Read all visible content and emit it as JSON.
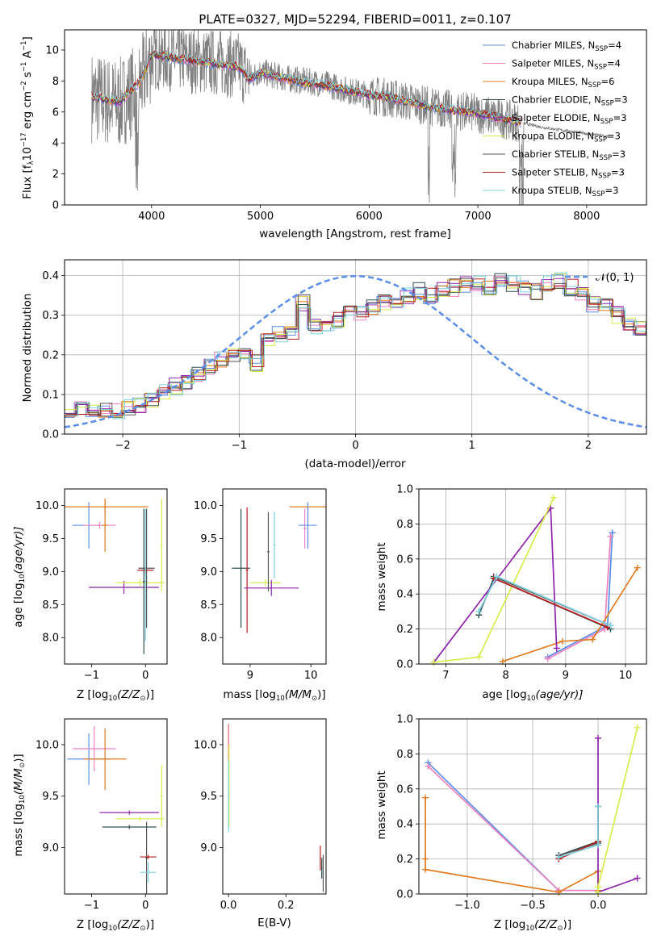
{
  "title": "PLATE=0327, MJD=52294, FIBERID=0011, z=0.107",
  "models": [
    {
      "name": "Chabrier MILES",
      "nssp": "4",
      "color": "#5b8ee6"
    },
    {
      "name": "Salpeter MILES",
      "nssp": "4",
      "color": "#ee82c0"
    },
    {
      "name": "Kroupa MILES",
      "nssp": "6",
      "color": "#e07b20"
    },
    {
      "name": "Chabrier ELODIE",
      "nssp": "3",
      "color": "#2f4f4f"
    },
    {
      "name": "Salpeter ELODIE",
      "nssp": "3",
      "color": "#8e24aa"
    },
    {
      "name": "Kroupa ELODIE",
      "nssp": "3",
      "color": "#d8ec4a"
    },
    {
      "name": "Chabrier STELIB",
      "nssp": "3",
      "color": "#555555"
    },
    {
      "name": "Salpeter STELIB",
      "nssp": "3",
      "color": "#b71c1c"
    },
    {
      "name": "Kroupa STELIB",
      "nssp": "3",
      "color": "#7fd0dc"
    }
  ],
  "legend_nssp_prefix": "N",
  "legend_nssp_sub": "SSP",
  "chart_data": [
    {
      "id": "spectrum",
      "type": "line",
      "xlabel": "wavelength [Angstrom, rest frame]",
      "ylabel_main": "Flux [f",
      "ylabel_sub": "λ",
      "ylabel_rest": "10",
      "ylabel_exp": "−17",
      "ylabel_units": " erg cm",
      "ylabel_units_exp": "−2",
      "ylabel_units2": " s",
      "ylabel_units2_exp": "−1",
      "ylabel_units3": " A",
      "ylabel_units3_exp": "−1",
      "ylabel_close": "]",
      "xlim": [
        3200,
        8550
      ],
      "ylim": [
        0,
        11.3
      ],
      "xticks": [
        "4000",
        "5000",
        "6000",
        "7000",
        "8000"
      ],
      "yticks": [
        "0",
        "2",
        "4",
        "6",
        "8",
        "10"
      ],
      "data_x": [
        3450,
        3700,
        3900,
        4000,
        4200,
        4400,
        4600,
        4800,
        4900,
        5000,
        5200,
        5400,
        5600,
        5800,
        6000,
        6200,
        6400,
        6600,
        6800,
        7000,
        7200,
        7400,
        7600,
        7800,
        8000,
        8200
      ],
      "data_y": [
        7.0,
        6.5,
        7.8,
        9.6,
        9.5,
        9.3,
        9.2,
        9.0,
        8.2,
        8.6,
        8.2,
        8.0,
        7.8,
        7.4,
        7.1,
        6.9,
        6.6,
        6.3,
        6.1,
        5.9,
        5.6,
        5.3,
        5.0,
        4.8,
        4.6,
        4.4
      ],
      "model_x": [
        3450,
        3700,
        3900,
        4000,
        4200,
        4400,
        4600,
        4800,
        4900,
        5000,
        5200,
        5400,
        5600,
        5800,
        6000,
        6200,
        6400,
        6600,
        6800,
        7000,
        7200,
        7400
      ],
      "model_y": [
        7.0,
        6.6,
        8.0,
        9.7,
        9.5,
        9.3,
        9.1,
        8.9,
        8.1,
        8.5,
        8.2,
        7.9,
        7.7,
        7.4,
        7.1,
        6.9,
        6.6,
        6.3,
        6.1,
        5.9,
        5.6,
        5.3
      ]
    },
    {
      "id": "residuals",
      "type": "step",
      "xlabel": "(data-model)/error",
      "ylabel": "Normed distribution",
      "xlim": [
        -2.5,
        2.5
      ],
      "ylim": [
        0,
        0.44
      ],
      "xticks": [
        "−2",
        "−1",
        "0",
        "1",
        "2"
      ],
      "yticks": [
        "0.0",
        "0.1",
        "0.2",
        "0.3",
        "0.4"
      ],
      "legend": "𝒩(0, 1)",
      "bin_width": 0.1,
      "bin_start": -2.5,
      "base_values": [
        0.045,
        0.06,
        0.055,
        0.06,
        0.06,
        0.065,
        0.07,
        0.09,
        0.11,
        0.12,
        0.13,
        0.15,
        0.17,
        0.19,
        0.2,
        0.2,
        0.18,
        0.24,
        0.25,
        0.26,
        0.33,
        0.27,
        0.28,
        0.29,
        0.31,
        0.3,
        0.32,
        0.33,
        0.34,
        0.35,
        0.36,
        0.35,
        0.36,
        0.37,
        0.38,
        0.38,
        0.37,
        0.39,
        0.38,
        0.37,
        0.36,
        0.38,
        0.39,
        0.37,
        0.35,
        0.33,
        0.32,
        0.3,
        0.28,
        0.27,
        0.26,
        0.24,
        0.23,
        0.22,
        0.2,
        0.19,
        0.18,
        0.15,
        0.13,
        0.12,
        0.1,
        0.1,
        0.09,
        0.09,
        0.08,
        0.07,
        0.07,
        0.06,
        0.05,
        0.04
      ]
    },
    {
      "id": "z-age",
      "type": "errorbar",
      "xlabel": "Z [log",
      "xlabel_sub": "10",
      "xlabel_rest": "(Z/Z",
      "xlabel_sun": "⊙",
      "xlabel_close": ")]",
      "ylabel": "age  [log",
      "ylabel_sub": "10",
      "ylabel_rest": "(age/yr)]",
      "xlim": [
        -1.5,
        0.4
      ],
      "ylim": [
        7.6,
        10.25
      ],
      "xticks": [
        "−1",
        "0"
      ],
      "xtick_values": [
        -1,
        0
      ],
      "yticks": [
        "8.0",
        "8.5",
        "9.0",
        "9.5",
        "10.0"
      ],
      "ytick_values": [
        8.0,
        8.5,
        9.0,
        9.5,
        10.0
      ],
      "points": [
        {
          "m": 0,
          "x": -1.05,
          "y": 9.7,
          "xe": 0.3,
          "ye": 0.35
        },
        {
          "m": 1,
          "x": -0.85,
          "y": 9.7,
          "xe": 0.3,
          "ye": 0.05
        },
        {
          "m": 2,
          "x": -0.75,
          "y": 9.98,
          "xe": 0.8,
          "ye": 0.12
        },
        {
          "m": 2,
          "x": -0.75,
          "y": 9.7,
          "xe": 0.05,
          "ye": 0.4
        },
        {
          "m": 4,
          "x": -0.4,
          "y": 8.76,
          "xe": 0.65,
          "ye": 0.1
        },
        {
          "m": 5,
          "x": -0.1,
          "y": 8.83,
          "xe": 0.45,
          "ye": 0.05
        },
        {
          "m": 6,
          "x": 0.02,
          "y": 9.05,
          "xe": 0.15,
          "ye": 0.9
        },
        {
          "m": 7,
          "x": 0.0,
          "y": 9.02,
          "xe": 0.15,
          "ye": 0.05
        },
        {
          "m": 3,
          "x": -0.03,
          "y": 8.85,
          "xe": 0.02,
          "ye": 1.1
        },
        {
          "m": 8,
          "x": 0.0,
          "y": 8.95,
          "xe": 0.02,
          "ye": 1.0
        },
        {
          "m": 5,
          "x": 0.3,
          "y": 9.4,
          "xe": 0.02,
          "ye": 0.7
        }
      ]
    },
    {
      "id": "mass-age",
      "type": "errorbar",
      "xlabel": "mass [log",
      "xlabel_sub": "10",
      "xlabel_rest": "(M/M",
      "xlabel_sun": "⊙",
      "xlabel_close": ")]",
      "xlim": [
        8.55,
        10.25
      ],
      "ylim": [
        7.6,
        10.25
      ],
      "xticks": [
        "9",
        "10"
      ],
      "xtick_values": [
        9,
        10
      ],
      "yticks": [
        "8.0",
        "8.5",
        "9.0",
        "9.5",
        "10.0"
      ],
      "ytick_values": [
        8.0,
        8.5,
        9.0,
        9.5,
        10.0
      ],
      "points": [
        {
          "m": 3,
          "x": 8.85,
          "y": 9.05,
          "xe": 0.15,
          "ye": 0.9
        },
        {
          "m": 7,
          "x": 8.95,
          "y": 9.02,
          "xe": 0.02,
          "ye": 0.95
        },
        {
          "m": 5,
          "x": 9.25,
          "y": 8.83,
          "xe": 0.25,
          "ye": 0.05
        },
        {
          "m": 4,
          "x": 9.35,
          "y": 8.75,
          "xe": 0.45,
          "ye": 0.12
        },
        {
          "m": 6,
          "x": 9.3,
          "y": 9.3,
          "xe": 0.02,
          "ye": 0.6
        },
        {
          "m": 8,
          "x": 9.4,
          "y": 9.4,
          "xe": 0.02,
          "ye": 0.5
        },
        {
          "m": 2,
          "x": 9.95,
          "y": 9.98,
          "xe": 0.3,
          "ye": 0.05
        },
        {
          "m": 1,
          "x": 9.9,
          "y": 9.65,
          "xe": 0.02,
          "ye": 0.3
        },
        {
          "m": 0,
          "x": 9.95,
          "y": 9.7,
          "xe": 0.15,
          "ye": 0.35
        }
      ]
    },
    {
      "id": "age-weight",
      "type": "line",
      "xlabel": "age  [log",
      "xlabel_sub": "10",
      "xlabel_rest": "(age/yr)]",
      "ylabel": "mass weight",
      "xlim": [
        6.55,
        10.35
      ],
      "ylim": [
        0,
        1.0
      ],
      "xticks": [
        "7",
        "8",
        "9",
        "10"
      ],
      "xtick_values": [
        7,
        8,
        9,
        10
      ],
      "yticks": [
        "0.0",
        "0.2",
        "0.4",
        "0.6",
        "0.8",
        "1.0"
      ],
      "ytick_values": [
        0,
        0.2,
        0.4,
        0.6,
        0.8,
        1.0
      ],
      "series": [
        {
          "m": 0,
          "x": [
            8.7,
            9.7,
            9.78
          ],
          "y": [
            0.04,
            0.22,
            0.75
          ]
        },
        {
          "m": 1,
          "x": [
            8.7,
            9.65,
            9.75
          ],
          "y": [
            0.03,
            0.2,
            0.73
          ]
        },
        {
          "m": 2,
          "x": [
            7.95,
            8.95,
            9.45,
            10.2
          ],
          "y": [
            0.015,
            0.13,
            0.14,
            0.55
          ]
        },
        {
          "m": 3,
          "x": [
            7.55,
            7.8,
            9.75
          ],
          "y": [
            0.28,
            0.49,
            0.2
          ]
        },
        {
          "m": 4,
          "x": [
            6.8,
            8.75,
            8.85
          ],
          "y": [
            0.01,
            0.89,
            0.09
          ]
        },
        {
          "m": 5,
          "x": [
            6.8,
            7.55,
            8.8
          ],
          "y": [
            0.01,
            0.04,
            0.95
          ]
        },
        {
          "m": 6,
          "x": [
            7.8,
            9.75
          ],
          "y": [
            0.5,
            0.22
          ]
        },
        {
          "m": 7,
          "x": [
            7.8,
            9.7
          ],
          "y": [
            0.49,
            0.21
          ]
        },
        {
          "m": 8,
          "x": [
            7.55,
            7.85,
            9.75
          ],
          "y": [
            0.3,
            0.5,
            0.22
          ]
        }
      ]
    },
    {
      "id": "z-mass",
      "type": "errorbar",
      "xlabel": "Z [log",
      "xlabel_sub": "10",
      "xlabel_rest": "(Z/Z",
      "xlabel_sun": "⊙",
      "xlabel_close": ")]",
      "ylabel": "mass [log",
      "ylabel_sub": "10",
      "ylabel_rest": "(M/M",
      "ylabel_sun": "⊙",
      "ylabel_close": ")]",
      "xlim": [
        -1.5,
        0.4
      ],
      "ylim": [
        8.55,
        10.25
      ],
      "xticks": [
        "−1",
        "0"
      ],
      "xtick_values": [
        -1,
        0
      ],
      "yticks": [
        "9.0",
        "9.5",
        "10.0"
      ],
      "ytick_values": [
        9.0,
        9.5,
        10.0
      ],
      "points": [
        {
          "m": 0,
          "x": -1.05,
          "y": 9.86,
          "xe": 0.4,
          "ye": 0.25
        },
        {
          "m": 1,
          "x": -0.95,
          "y": 9.96,
          "xe": 0.4,
          "ye": 0.22
        },
        {
          "m": 2,
          "x": -0.75,
          "y": 9.86,
          "xe": 0.4,
          "ye": 0.3
        },
        {
          "m": 3,
          "x": -0.3,
          "y": 9.2,
          "xe": 0.5,
          "ye": 0.02
        },
        {
          "m": 4,
          "x": -0.3,
          "y": 9.34,
          "xe": 0.55,
          "ye": 0.02
        },
        {
          "m": 5,
          "x": -0.1,
          "y": 9.28,
          "xe": 0.45,
          "ye": 0.02
        },
        {
          "m": 6,
          "x": 0.02,
          "y": 8.9,
          "xe": 0.02,
          "ye": 0.35
        },
        {
          "m": 7,
          "x": 0.05,
          "y": 8.91,
          "xe": 0.15,
          "ye": 0.02
        },
        {
          "m": 8,
          "x": 0.05,
          "y": 8.76,
          "xe": 0.15,
          "ye": 0.1
        },
        {
          "m": 5,
          "x": 0.3,
          "y": 9.5,
          "xe": 0.02,
          "ye": 0.3
        }
      ]
    },
    {
      "id": "ebv-mass",
      "type": "errorbar",
      "xlabel": "E(B-V)",
      "xlim": [
        -0.02,
        0.34
      ],
      "ylim": [
        8.55,
        10.25
      ],
      "xticks": [
        "0.0",
        "0.2"
      ],
      "xtick_values": [
        0,
        0.2
      ],
      "yticks": [
        "9.0",
        "9.5",
        "10.0"
      ],
      "ytick_values": [
        9.0,
        9.5,
        10.0
      ],
      "points": [
        {
          "m": 2,
          "x": 0.0,
          "y": 9.98,
          "xe": 0.002,
          "ye": 0.22
        },
        {
          "m": 1,
          "x": 0.001,
          "y": 9.95,
          "xe": 0.002,
          "ye": 0.25
        },
        {
          "m": 5,
          "x": 0.002,
          "y": 9.6,
          "xe": 0.002,
          "ye": 0.4
        },
        {
          "m": 8,
          "x": 0.0,
          "y": 9.5,
          "xe": 0.002,
          "ye": 0.35
        },
        {
          "m": 6,
          "x": 0.33,
          "y": 8.75,
          "xe": 0.002,
          "ye": 0.18
        },
        {
          "m": 3,
          "x": 0.325,
          "y": 8.8,
          "xe": 0.002,
          "ye": 0.1
        },
        {
          "m": 7,
          "x": 0.32,
          "y": 8.9,
          "xe": 0.002,
          "ye": 0.12
        }
      ]
    },
    {
      "id": "z-weight",
      "type": "line",
      "xlabel": "Z [log",
      "xlabel_sub": "10",
      "xlabel_rest": "(Z/Z",
      "xlabel_sun": "⊙",
      "xlabel_close": ")]",
      "ylabel": "mass weight",
      "xlim": [
        -1.37,
        0.37
      ],
      "ylim": [
        0,
        1.0
      ],
      "xticks": [
        "−1.0",
        "−0.5",
        "0.0"
      ],
      "xtick_values": [
        -1.0,
        -0.5,
        0.0
      ],
      "yticks": [
        "0.0",
        "0.2",
        "0.4",
        "0.6",
        "0.8",
        "1.0"
      ],
      "ytick_values": [
        0,
        0.2,
        0.4,
        0.6,
        0.8,
        1.0
      ],
      "series": [
        {
          "m": 0,
          "x": [
            -1.3,
            -0.3,
            0.0
          ],
          "y": [
            0.75,
            0.02,
            0.02
          ]
        },
        {
          "m": 1,
          "x": [
            -1.3,
            -0.3,
            0.0
          ],
          "y": [
            0.73,
            0.02,
            0.02
          ]
        },
        {
          "m": 2,
          "x": [
            -1.32,
            -1.32,
            -1.32,
            -0.3,
            0.0,
            0.0
          ],
          "y": [
            0.55,
            0.2,
            0.14,
            0.01,
            0.13,
            0.02
          ]
        },
        {
          "m": 3,
          "x": [
            -0.3,
            0.0,
            0.0
          ],
          "y": [
            0.22,
            0.3,
            0.5
          ]
        },
        {
          "m": 4,
          "x": [
            0.0,
            0.0,
            0.3
          ],
          "y": [
            0.89,
            0.01,
            0.09
          ]
        },
        {
          "m": 5,
          "x": [
            0.0,
            0.0,
            0.3
          ],
          "y": [
            0.01,
            0.04,
            0.95
          ]
        },
        {
          "m": 6,
          "x": [
            -0.3,
            0.0
          ],
          "y": [
            0.22,
            0.29
          ]
        },
        {
          "m": 7,
          "x": [
            -0.3,
            0.0
          ],
          "y": [
            0.2,
            0.3
          ]
        },
        {
          "m": 8,
          "x": [
            0.0,
            0.0,
            -0.3
          ],
          "y": [
            0.5,
            0.28,
            0.21
          ]
        }
      ]
    }
  ]
}
